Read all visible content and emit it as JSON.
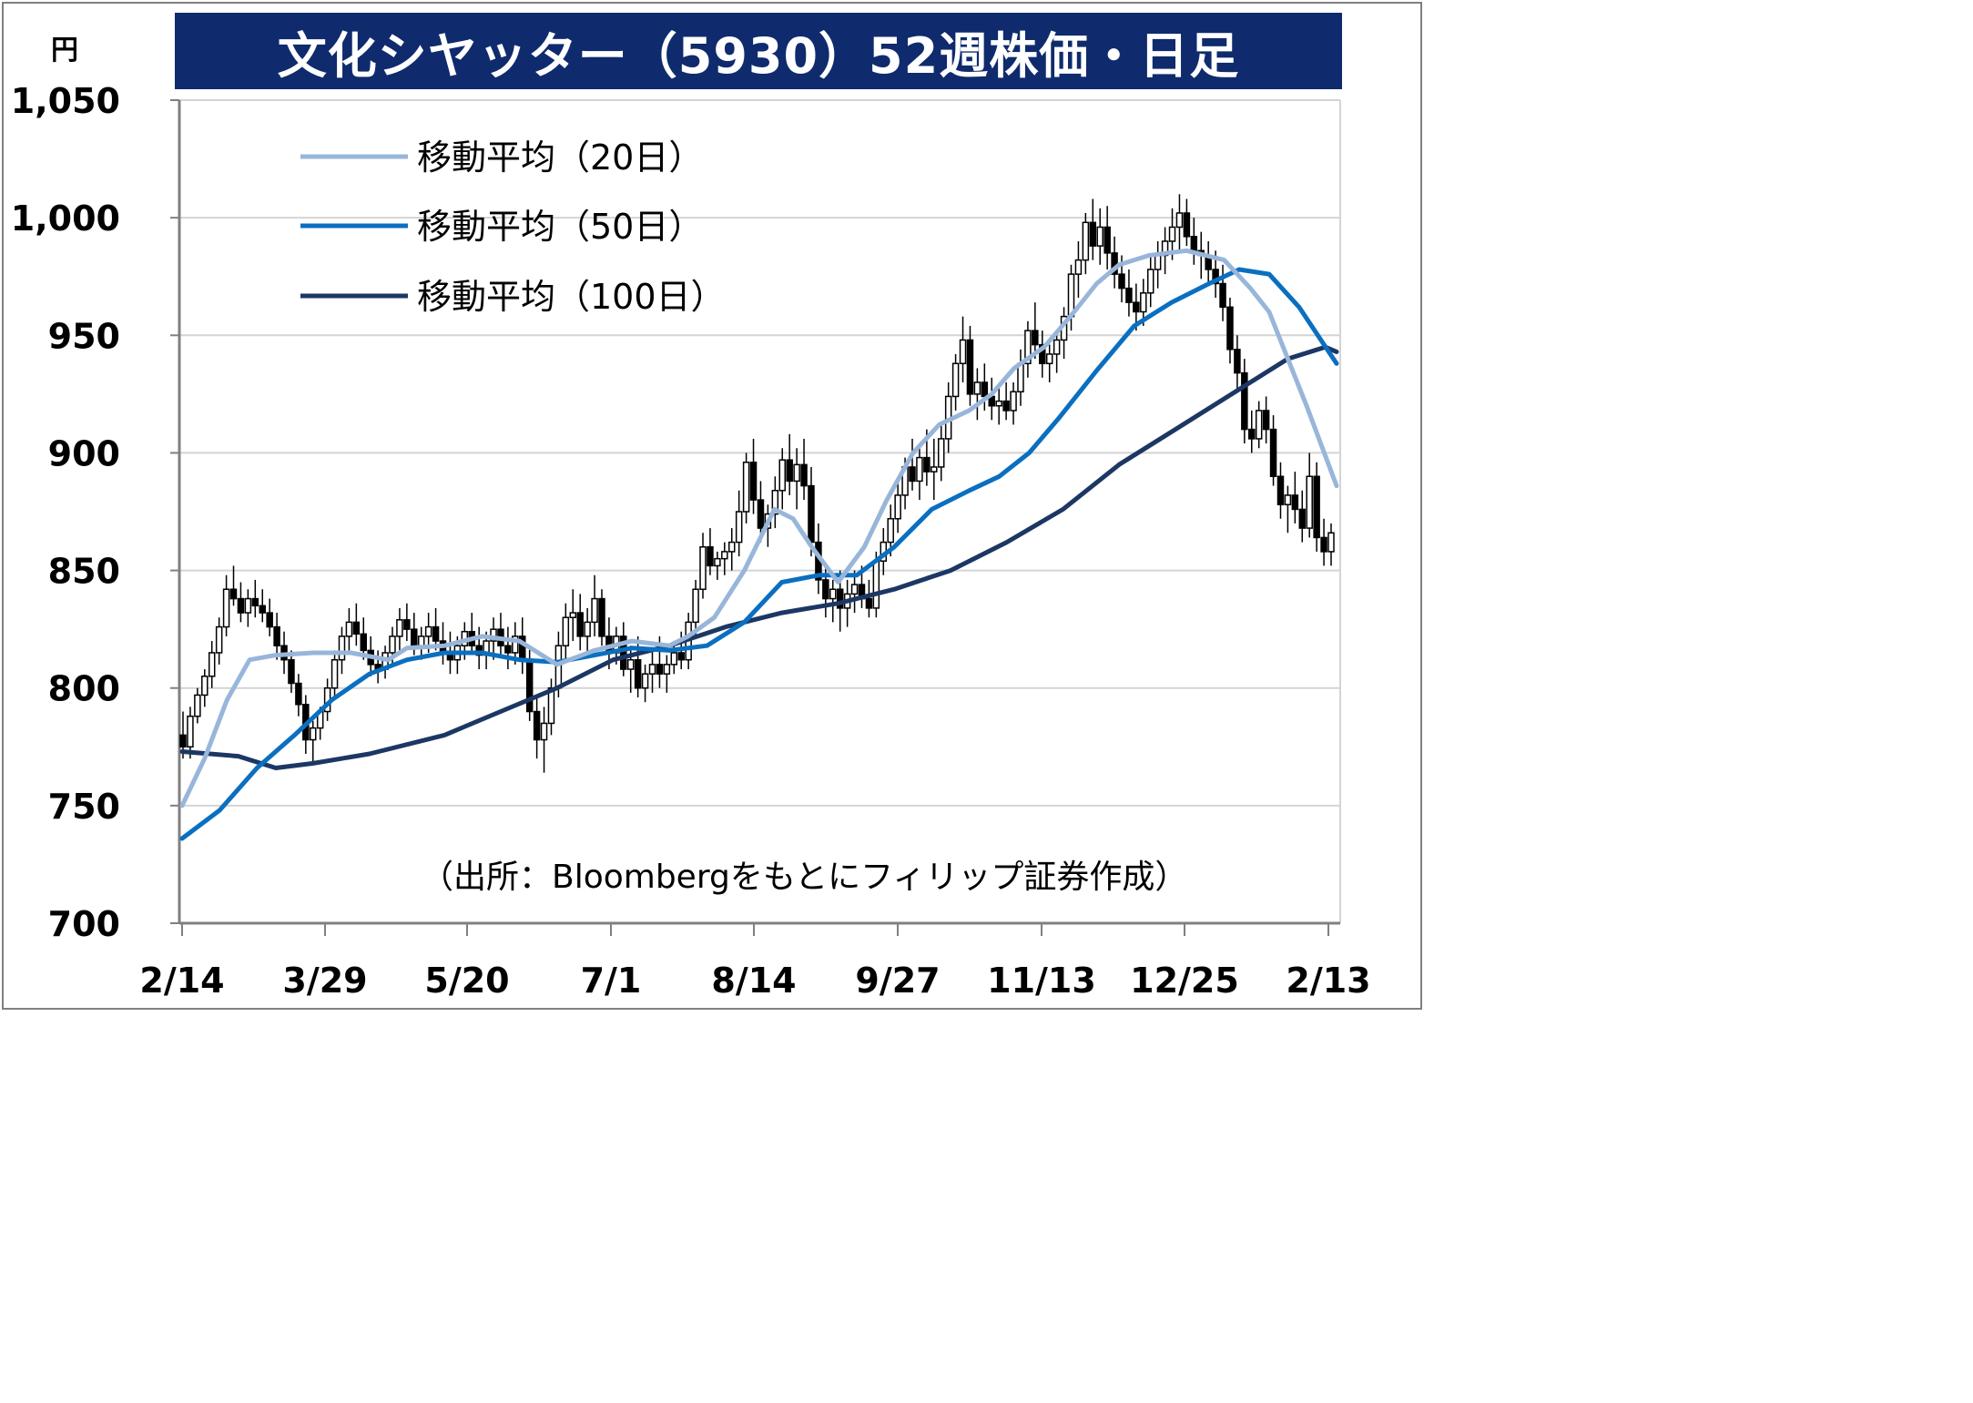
{
  "title": "文化シヤッター（5930）52週株価・日足",
  "unit": "円",
  "source": "（出所：Bloombergをもとにフィリップ証券作成）",
  "colors": {
    "title_bg": "#0f2b6d",
    "ma20": "#98b6da",
    "ma50": "#0a6fc0",
    "ma100": "#1c3764",
    "candle": "#000000",
    "grid": "#d4d4d4"
  },
  "chart_data": {
    "type": "candlestick",
    "title": "文化シヤッター（5930）52週株価・日足",
    "ylabel": "円",
    "ylim": [
      700,
      1050
    ],
    "yticks": [
      700,
      750,
      800,
      850,
      900,
      950,
      1000,
      1050
    ],
    "ytick_labels": [
      "700",
      "750",
      "800",
      "850",
      "900",
      "950",
      "1,000",
      "1,050"
    ],
    "xticks": [
      "2/14",
      "3/29",
      "5/20",
      "7/1",
      "8/14",
      "9/27",
      "11/13",
      "12/25",
      "2/13"
    ],
    "grid": true,
    "legend_position": "top-left",
    "legend": [
      "移動平均（20日）",
      "移動平均（50日）",
      "移動平均（100日）"
    ],
    "ohlc": [
      [
        780,
        790,
        770,
        775
      ],
      [
        775,
        792,
        770,
        788
      ],
      [
        788,
        800,
        785,
        797
      ],
      [
        797,
        808,
        792,
        805
      ],
      [
        805,
        820,
        800,
        815
      ],
      [
        815,
        830,
        810,
        826
      ],
      [
        826,
        848,
        822,
        842
      ],
      [
        842,
        852,
        835,
        838
      ],
      [
        838,
        845,
        828,
        832
      ],
      [
        832,
        842,
        826,
        838
      ],
      [
        838,
        846,
        830,
        835
      ],
      [
        835,
        842,
        828,
        832
      ],
      [
        832,
        838,
        822,
        826
      ],
      [
        826,
        832,
        812,
        818
      ],
      [
        818,
        824,
        806,
        812
      ],
      [
        812,
        816,
        798,
        802
      ],
      [
        802,
        806,
        788,
        793
      ],
      [
        793,
        797,
        772,
        778
      ],
      [
        778,
        786,
        768,
        783
      ],
      [
        783,
        792,
        778,
        790
      ],
      [
        790,
        804,
        786,
        800
      ],
      [
        800,
        816,
        796,
        812
      ],
      [
        812,
        826,
        806,
        822
      ],
      [
        822,
        834,
        816,
        828
      ],
      [
        828,
        836,
        818,
        823
      ],
      [
        823,
        830,
        812,
        816
      ],
      [
        816,
        822,
        805,
        810
      ],
      [
        810,
        816,
        802,
        808
      ],
      [
        808,
        818,
        804,
        815
      ],
      [
        815,
        826,
        810,
        822
      ],
      [
        822,
        834,
        816,
        829
      ],
      [
        829,
        836,
        820,
        825
      ],
      [
        825,
        832,
        814,
        818
      ],
      [
        818,
        826,
        812,
        822
      ],
      [
        822,
        832,
        815,
        826
      ],
      [
        826,
        834,
        816,
        820
      ],
      [
        820,
        828,
        810,
        815
      ],
      [
        815,
        824,
        806,
        812
      ],
      [
        812,
        822,
        806,
        818
      ],
      [
        818,
        828,
        812,
        824
      ],
      [
        824,
        832,
        814,
        818
      ],
      [
        818,
        826,
        808,
        814
      ],
      [
        814,
        824,
        808,
        820
      ],
      [
        820,
        830,
        812,
        825
      ],
      [
        825,
        832,
        814,
        818
      ],
      [
        818,
        826,
        808,
        815
      ],
      [
        815,
        828,
        810,
        822
      ],
      [
        822,
        830,
        806,
        812
      ],
      [
        812,
        818,
        786,
        790
      ],
      [
        790,
        796,
        770,
        778
      ],
      [
        778,
        792,
        764,
        785
      ],
      [
        785,
        804,
        780,
        800
      ],
      [
        800,
        824,
        796,
        818
      ],
      [
        818,
        836,
        812,
        830
      ],
      [
        830,
        842,
        820,
        832
      ],
      [
        832,
        840,
        816,
        822
      ],
      [
        822,
        834,
        814,
        828
      ],
      [
        828,
        848,
        822,
        838
      ],
      [
        838,
        842,
        818,
        822
      ],
      [
        822,
        830,
        808,
        815
      ],
      [
        815,
        826,
        810,
        822
      ],
      [
        822,
        828,
        805,
        808
      ],
      [
        808,
        818,
        798,
        812
      ],
      [
        812,
        822,
        796,
        800
      ],
      [
        800,
        810,
        794,
        806
      ],
      [
        806,
        816,
        798,
        810
      ],
      [
        810,
        822,
        800,
        806
      ],
      [
        806,
        814,
        798,
        810
      ],
      [
        810,
        820,
        806,
        815
      ],
      [
        815,
        824,
        808,
        812
      ],
      [
        812,
        832,
        808,
        828
      ],
      [
        828,
        846,
        822,
        842
      ],
      [
        842,
        866,
        838,
        860
      ],
      [
        860,
        868,
        848,
        852
      ],
      [
        852,
        858,
        846,
        855
      ],
      [
        855,
        862,
        848,
        858
      ],
      [
        858,
        868,
        850,
        862
      ],
      [
        862,
        884,
        856,
        875
      ],
      [
        875,
        900,
        870,
        896
      ],
      [
        896,
        906,
        874,
        880
      ],
      [
        880,
        888,
        862,
        868
      ],
      [
        868,
        878,
        860,
        874
      ],
      [
        874,
        890,
        868,
        884
      ],
      [
        884,
        902,
        876,
        897
      ],
      [
        897,
        908,
        882,
        888
      ],
      [
        888,
        902,
        876,
        895
      ],
      [
        895,
        906,
        880,
        886
      ],
      [
        886,
        894,
        856,
        862
      ],
      [
        862,
        870,
        840,
        846
      ],
      [
        846,
        852,
        830,
        838
      ],
      [
        838,
        846,
        828,
        842
      ],
      [
        842,
        850,
        824,
        834
      ],
      [
        834,
        846,
        826,
        840
      ],
      [
        840,
        850,
        832,
        844
      ],
      [
        844,
        852,
        834,
        838
      ],
      [
        838,
        846,
        830,
        834
      ],
      [
        834,
        858,
        830,
        854
      ],
      [
        854,
        868,
        848,
        862
      ],
      [
        862,
        878,
        856,
        872
      ],
      [
        872,
        888,
        866,
        882
      ],
      [
        882,
        898,
        876,
        894
      ],
      [
        894,
        906,
        884,
        888
      ],
      [
        888,
        904,
        880,
        898
      ],
      [
        898,
        910,
        886,
        892
      ],
      [
        892,
        906,
        880,
        894
      ],
      [
        894,
        912,
        888,
        906
      ],
      [
        906,
        930,
        900,
        924
      ],
      [
        924,
        942,
        918,
        938
      ],
      [
        938,
        958,
        930,
        948
      ],
      [
        948,
        954,
        920,
        925
      ],
      [
        925,
        936,
        914,
        930
      ],
      [
        930,
        938,
        918,
        924
      ],
      [
        924,
        932,
        914,
        920
      ],
      [
        920,
        928,
        912,
        922
      ],
      [
        922,
        930,
        914,
        918
      ],
      [
        918,
        930,
        912,
        926
      ],
      [
        926,
        944,
        920,
        938
      ],
      [
        938,
        956,
        932,
        952
      ],
      [
        952,
        964,
        940,
        946
      ],
      [
        946,
        952,
        932,
        938
      ],
      [
        938,
        946,
        930,
        942
      ],
      [
        942,
        952,
        934,
        948
      ],
      [
        948,
        962,
        940,
        958
      ],
      [
        958,
        980,
        952,
        976
      ],
      [
        976,
        990,
        966,
        982
      ],
      [
        982,
        1002,
        976,
        998
      ],
      [
        998,
        1008,
        982,
        988
      ],
      [
        988,
        1004,
        980,
        996
      ],
      [
        996,
        1005,
        978,
        985
      ],
      [
        985,
        992,
        970,
        976
      ],
      [
        976,
        984,
        964,
        970
      ],
      [
        970,
        978,
        958,
        964
      ],
      [
        964,
        972,
        952,
        960
      ],
      [
        960,
        974,
        954,
        968
      ],
      [
        968,
        984,
        962,
        978
      ],
      [
        978,
        990,
        970,
        984
      ],
      [
        984,
        996,
        976,
        990
      ],
      [
        990,
        1004,
        982,
        996
      ],
      [
        996,
        1010,
        986,
        1002
      ],
      [
        1002,
        1008,
        988,
        992
      ],
      [
        992,
        1000,
        980,
        986
      ],
      [
        986,
        994,
        974,
        984
      ],
      [
        984,
        990,
        972,
        978
      ],
      [
        978,
        986,
        966,
        972
      ],
      [
        972,
        980,
        956,
        962
      ],
      [
        962,
        966,
        938,
        944
      ],
      [
        944,
        950,
        926,
        934
      ],
      [
        934,
        940,
        904,
        910
      ],
      [
        910,
        918,
        900,
        906
      ],
      [
        906,
        922,
        902,
        918
      ],
      [
        918,
        924,
        904,
        910
      ],
      [
        910,
        916,
        886,
        890
      ],
      [
        890,
        896,
        872,
        878
      ],
      [
        878,
        886,
        866,
        882
      ],
      [
        882,
        892,
        870,
        876
      ],
      [
        876,
        884,
        862,
        868
      ],
      [
        868,
        900,
        864,
        890
      ],
      [
        890,
        896,
        858,
        864
      ],
      [
        864,
        872,
        852,
        858
      ],
      [
        858,
        870,
        852,
        866
      ]
    ],
    "ma20_path": [
      [
        0,
        750
      ],
      [
        6,
        770
      ],
      [
        12,
        795
      ],
      [
        18,
        812
      ],
      [
        25,
        814
      ],
      [
        35,
        815
      ],
      [
        45,
        815
      ],
      [
        55,
        812
      ],
      [
        60,
        817
      ],
      [
        70,
        818
      ],
      [
        80,
        822
      ],
      [
        90,
        820
      ],
      [
        100,
        810
      ],
      [
        110,
        816
      ],
      [
        120,
        820
      ],
      [
        130,
        818
      ],
      [
        135,
        822
      ],
      [
        142,
        830
      ],
      [
        150,
        850
      ],
      [
        158,
        876
      ],
      [
        163,
        872
      ],
      [
        168,
        860
      ],
      [
        175,
        845
      ],
      [
        182,
        860
      ],
      [
        188,
        880
      ],
      [
        195,
        900
      ],
      [
        202,
        912
      ],
      [
        210,
        918
      ],
      [
        216,
        925
      ],
      [
        222,
        936
      ],
      [
        230,
        945
      ],
      [
        238,
        960
      ],
      [
        244,
        972
      ],
      [
        250,
        980
      ],
      [
        258,
        984
      ],
      [
        268,
        986
      ],
      [
        278,
        982
      ],
      [
        285,
        970
      ],
      [
        290,
        960
      ],
      [
        300,
        920
      ],
      [
        308,
        886
      ]
    ],
    "ma50_path": [
      [
        0,
        736
      ],
      [
        10,
        748
      ],
      [
        20,
        766
      ],
      [
        30,
        780
      ],
      [
        40,
        795
      ],
      [
        50,
        806
      ],
      [
        60,
        812
      ],
      [
        70,
        815
      ],
      [
        80,
        815
      ],
      [
        90,
        812
      ],
      [
        100,
        811
      ],
      [
        110,
        814
      ],
      [
        120,
        817
      ],
      [
        130,
        816
      ],
      [
        140,
        818
      ],
      [
        150,
        828
      ],
      [
        160,
        845
      ],
      [
        170,
        848
      ],
      [
        180,
        848
      ],
      [
        190,
        860
      ],
      [
        200,
        876
      ],
      [
        210,
        884
      ],
      [
        218,
        890
      ],
      [
        226,
        900
      ],
      [
        234,
        915
      ],
      [
        244,
        935
      ],
      [
        254,
        954
      ],
      [
        264,
        964
      ],
      [
        274,
        972
      ],
      [
        282,
        978
      ],
      [
        290,
        976
      ],
      [
        298,
        962
      ],
      [
        308,
        938
      ]
    ],
    "ma100_path": [
      [
        0,
        773
      ],
      [
        15,
        771
      ],
      [
        25,
        766
      ],
      [
        35,
        768
      ],
      [
        50,
        772
      ],
      [
        70,
        780
      ],
      [
        85,
        790
      ],
      [
        100,
        800
      ],
      [
        115,
        812
      ],
      [
        130,
        818
      ],
      [
        145,
        826
      ],
      [
        160,
        832
      ],
      [
        175,
        836
      ],
      [
        190,
        842
      ],
      [
        205,
        850
      ],
      [
        220,
        862
      ],
      [
        235,
        876
      ],
      [
        250,
        895
      ],
      [
        265,
        910
      ],
      [
        280,
        925
      ],
      [
        295,
        940
      ],
      [
        305,
        945
      ],
      [
        308,
        943
      ]
    ]
  }
}
